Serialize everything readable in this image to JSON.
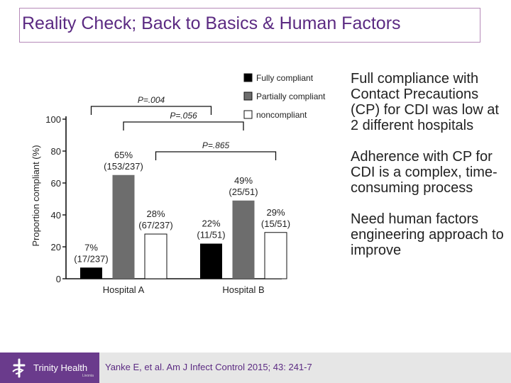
{
  "slide": {
    "title": "Reality Check; Back to Basics & Human Factors",
    "bullets": [
      "Full compliance with Contact Precautions (CP) for CDI was low at 2 different hospitals",
      "Adherence with CP for CDI is a complex, time-consuming process",
      "Need human factors engineering approach to improve"
    ],
    "citation": "Yanke E, et al. Am J Infect Control 2015; 43: 241-7",
    "logo_text": "Trinity Health",
    "logo_subtext": "Livonia"
  },
  "colors": {
    "title": "#5b2a82",
    "fully_compliant": "#000000",
    "partially_compliant": "#6d6d6d",
    "noncompliant": "#ffffff",
    "footer_logo_bg": "#6a3b8c"
  },
  "chart_data": {
    "type": "bar",
    "categories": [
      "Hospital A",
      "Hospital B"
    ],
    "ylabel": "Proportion compliant (%)",
    "ylim": [
      0,
      100
    ],
    "yticks": [
      0,
      20,
      40,
      60,
      80,
      100
    ],
    "series": [
      {
        "name": "Fully compliant",
        "color": "#000000",
        "values": [
          7,
          22
        ],
        "labels": [
          [
            "7%",
            "(17/237)"
          ],
          [
            "22%",
            "(11/51)"
          ]
        ]
      },
      {
        "name": "Partially compliant",
        "color": "#6d6d6d",
        "values": [
          65,
          49
        ],
        "labels": [
          [
            "65%",
            "(153/237)"
          ],
          [
            "49%",
            "(25/51)"
          ]
        ]
      },
      {
        "name": "noncompliant",
        "color": "#ffffff",
        "values": [
          28,
          29
        ],
        "labels": [
          [
            "28%",
            "(67/237)"
          ],
          [
            "29%",
            "(15/51)"
          ]
        ]
      }
    ],
    "legend_position": "top-right",
    "annotations": [
      {
        "text": "P=.004",
        "from": "Hospital A fully compliant",
        "to": "Hospital B fully compliant"
      },
      {
        "text": "P=.056",
        "from": "Hospital A partially compliant",
        "to": "Hospital B partially compliant"
      },
      {
        "text": "P=.865",
        "from": "Hospital A noncompliant",
        "to": "Hospital B noncompliant"
      }
    ]
  }
}
